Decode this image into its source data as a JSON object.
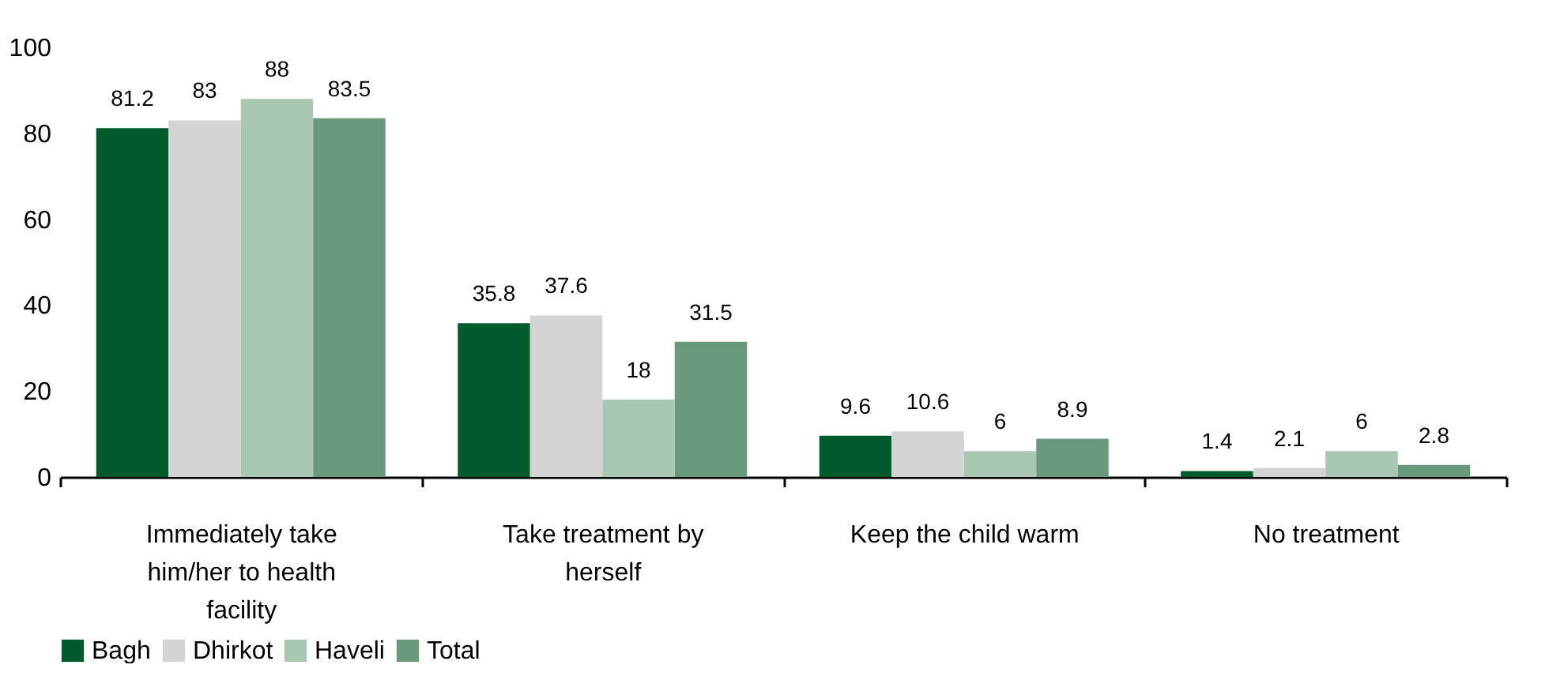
{
  "chart_data": {
    "type": "bar",
    "categories": [
      "Immediately take him/her to health facility",
      "Take treatment by herself",
      "Keep the child warm",
      "No treatment"
    ],
    "series": [
      {
        "name": "Bagh",
        "color": "#005a2b",
        "values": [
          81.2,
          35.8,
          9.6,
          1.4
        ]
      },
      {
        "name": "Dhirkot",
        "color": "#d4d4d4",
        "values": [
          83,
          37.6,
          10.6,
          2.1
        ]
      },
      {
        "name": "Haveli",
        "color": "#a8c8b4",
        "values": [
          88,
          18,
          6,
          6
        ]
      },
      {
        "name": "Total",
        "color": "#68997c",
        "values": [
          83.5,
          31.5,
          8.9,
          2.8
        ]
      }
    ],
    "ylim": [
      0,
      100
    ],
    "yticks": [
      0,
      20,
      40,
      60,
      80,
      100
    ],
    "data_labels": true,
    "legend": "bottom"
  }
}
